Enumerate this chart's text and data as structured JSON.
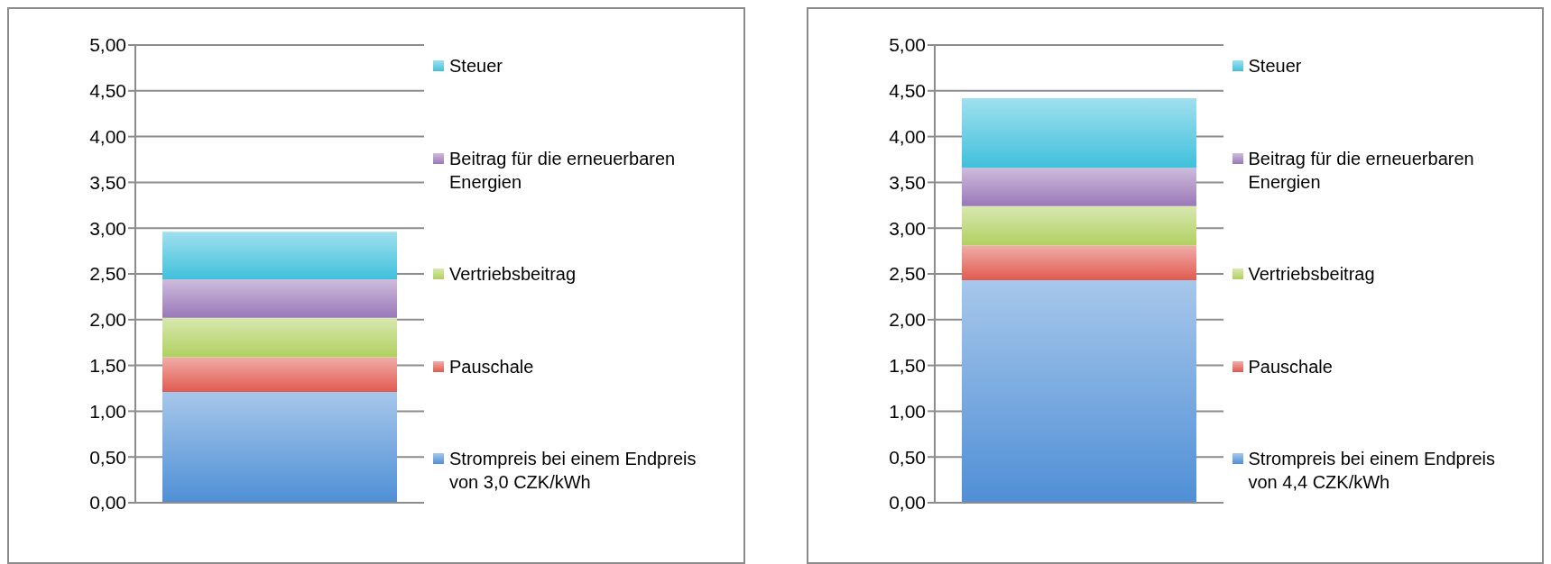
{
  "chart_data": [
    {
      "type": "bar",
      "stacked": true,
      "categories": [
        null
      ],
      "tick_labels": "y",
      "grid": "y",
      "legend": "right",
      "ylim": [
        0,
        5
      ],
      "yticks": [
        {
          "value": 0,
          "label": "0,00"
        },
        {
          "value": 0.5,
          "label": "0,50"
        },
        {
          "value": 1,
          "label": "1,00"
        },
        {
          "value": 1.5,
          "label": "1,50"
        },
        {
          "value": 2,
          "label": "2,00"
        },
        {
          "value": 2.5,
          "label": "2,50"
        },
        {
          "value": 3,
          "label": "3,00"
        },
        {
          "value": 3.5,
          "label": "3,50"
        },
        {
          "value": 4,
          "label": "4,00"
        },
        {
          "value": 4.5,
          "label": "4,50"
        },
        {
          "value": 5,
          "label": "5,00"
        }
      ],
      "series": [
        {
          "name": "Strompreis bei einem Endpreis von 3,0 CZK/kWh",
          "color": "#4f8fd6",
          "values": [
            1.21
          ]
        },
        {
          "name": "Pauschale",
          "color": "#e05a50",
          "values": [
            0.38
          ]
        },
        {
          "name": "Vertriebsbeitrag",
          "color": "#b0d060",
          "values": [
            0.43
          ]
        },
        {
          "name": "Beitrag für die erneuerbaren Energien",
          "color": "#9a78b8",
          "values": [
            0.42
          ]
        },
        {
          "name": "Steuer",
          "color": "#40c0dc",
          "values": [
            0.52
          ]
        }
      ]
    },
    {
      "type": "bar",
      "stacked": true,
      "categories": [
        null
      ],
      "tick_labels": "y",
      "grid": "y",
      "legend": "right",
      "ylim": [
        0,
        5
      ],
      "yticks": [
        {
          "value": 0,
          "label": "0,00"
        },
        {
          "value": 0.5,
          "label": "0,50"
        },
        {
          "value": 1,
          "label": "1,00"
        },
        {
          "value": 1.5,
          "label": "1,50"
        },
        {
          "value": 2,
          "label": "2,00"
        },
        {
          "value": 2.5,
          "label": "2,50"
        },
        {
          "value": 3,
          "label": "3,00"
        },
        {
          "value": 3.5,
          "label": "3,50"
        },
        {
          "value": 4,
          "label": "4,00"
        },
        {
          "value": 4.5,
          "label": "4,50"
        },
        {
          "value": 5,
          "label": "5,00"
        }
      ],
      "series": [
        {
          "name": "Strompreis bei einem Endpreis von 4,4 CZK/kWh",
          "color": "#4f8fd6",
          "values": [
            2.43
          ]
        },
        {
          "name": "Pauschale",
          "color": "#e05a50",
          "values": [
            0.38
          ]
        },
        {
          "name": "Vertriebsbeitrag",
          "color": "#b0d060",
          "values": [
            0.43
          ]
        },
        {
          "name": "Beitrag für die erneuerbaren Energien",
          "color": "#9a78b8",
          "values": [
            0.42
          ]
        },
        {
          "name": "Steuer",
          "color": "#40c0dc",
          "values": [
            0.76
          ]
        }
      ]
    }
  ]
}
